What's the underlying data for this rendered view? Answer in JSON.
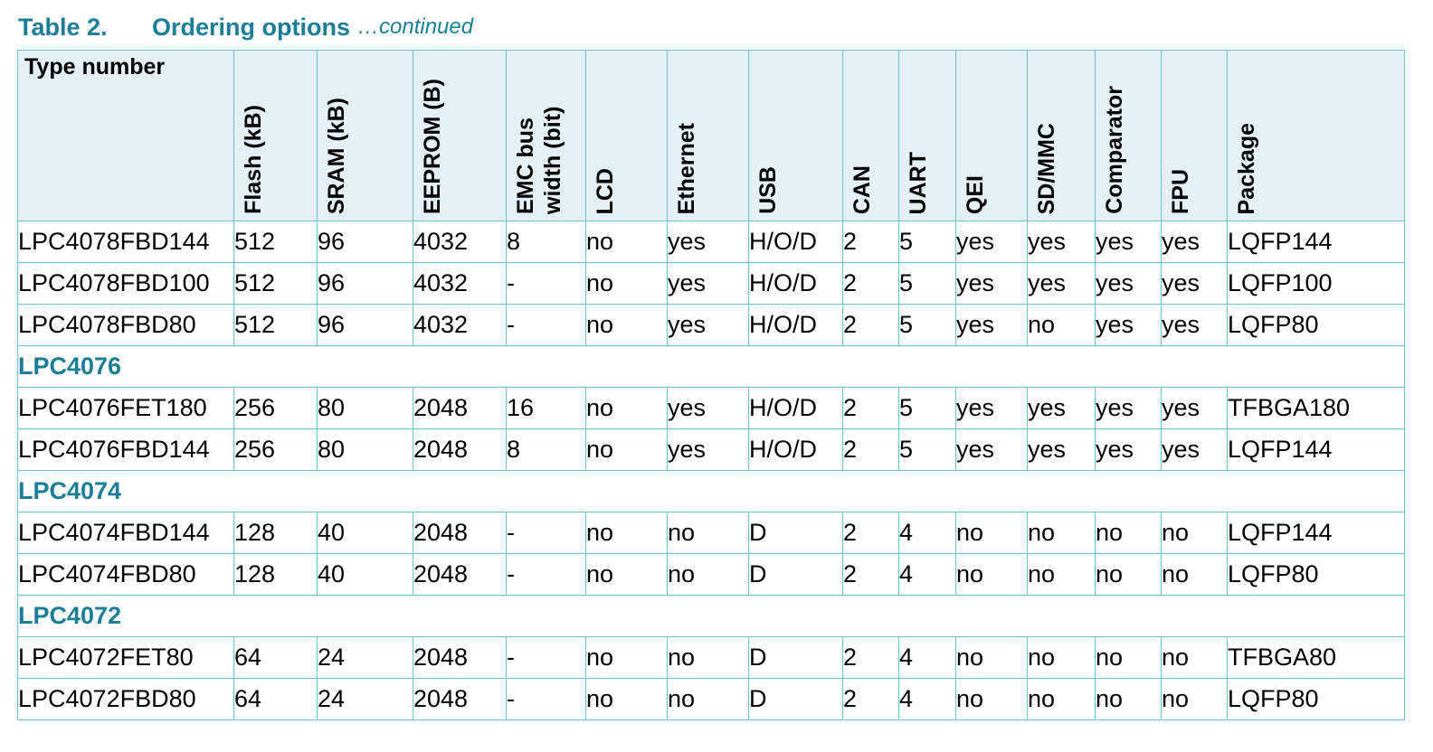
{
  "caption": {
    "number": "Table 2.",
    "title": "Ordering options",
    "continued": "…continued"
  },
  "headers": [
    "Type number",
    "Flash (kB)",
    "SRAM (kB)",
    "EEPROM (B)",
    "EMC bus width (bit)",
    "LCD",
    "Ethernet",
    "USB",
    "CAN",
    "UART",
    "QEI",
    "SD/MMC",
    "Comparator",
    "FPU",
    "Package"
  ],
  "rows": [
    {
      "type": "data",
      "cells": [
        "LPC4078FBD144",
        "512",
        "96",
        "4032",
        "8",
        "no",
        "yes",
        "H/O/D",
        "2",
        "5",
        "yes",
        "yes",
        "yes",
        "yes",
        "LQFP144"
      ]
    },
    {
      "type": "data",
      "cells": [
        "LPC4078FBD100",
        "512",
        "96",
        "4032",
        "-",
        "no",
        "yes",
        "H/O/D",
        "2",
        "5",
        "yes",
        "yes",
        "yes",
        "yes",
        "LQFP100"
      ]
    },
    {
      "type": "data",
      "cells": [
        "LPC4078FBD80",
        "512",
        "96",
        "4032",
        "-",
        "no",
        "yes",
        "H/O/D",
        "2",
        "5",
        "yes",
        "no",
        "yes",
        "yes",
        "LQFP80"
      ]
    },
    {
      "type": "group",
      "label": "LPC4076"
    },
    {
      "type": "data",
      "cells": [
        "LPC4076FET180",
        "256",
        "80",
        "2048",
        "16",
        "no",
        "yes",
        "H/O/D",
        "2",
        "5",
        "yes",
        "yes",
        "yes",
        "yes",
        "TFBGA180"
      ]
    },
    {
      "type": "data",
      "cells": [
        "LPC4076FBD144",
        "256",
        "80",
        "2048",
        "8",
        "no",
        "yes",
        "H/O/D",
        "2",
        "5",
        "yes",
        "yes",
        "yes",
        "yes",
        "LQFP144"
      ]
    },
    {
      "type": "group",
      "label": "LPC4074"
    },
    {
      "type": "data",
      "cells": [
        "LPC4074FBD144",
        "128",
        "40",
        "2048",
        "-",
        "no",
        "no",
        "D",
        "2",
        "4",
        "no",
        "no",
        "no",
        "no",
        "LQFP144"
      ]
    },
    {
      "type": "data",
      "cells": [
        "LPC4074FBD80",
        "128",
        "40",
        "2048",
        "-",
        "no",
        "no",
        "D",
        "2",
        "4",
        "no",
        "no",
        "no",
        "no",
        "LQFP80"
      ]
    },
    {
      "type": "group",
      "label": "LPC4072"
    },
    {
      "type": "data",
      "cells": [
        "LPC4072FET80",
        "64",
        "24",
        "2048",
        "-",
        "no",
        "no",
        "D",
        "2",
        "4",
        "no",
        "no",
        "no",
        "no",
        "TFBGA80"
      ]
    },
    {
      "type": "data",
      "cells": [
        "LPC4072FBD80",
        "64",
        "24",
        "2048",
        "-",
        "no",
        "no",
        "D",
        "2",
        "4",
        "no",
        "no",
        "no",
        "no",
        "LQFP80"
      ]
    }
  ],
  "colors": {
    "accent": "#1a7e96",
    "header_bg": "#e3f1f7",
    "border": "#6fbfd0"
  }
}
